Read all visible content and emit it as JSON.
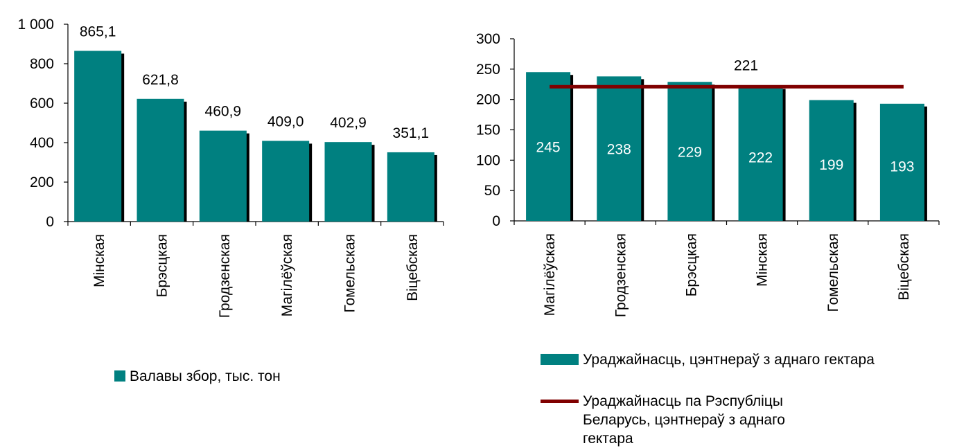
{
  "colors": {
    "bar": "#008080",
    "bar_shadow": "#000000",
    "line": "#800000",
    "axis": "#000000"
  },
  "chart_data": [
    {
      "type": "bar",
      "categories": [
        "Мінская",
        "Брэсцкая",
        "Гродзенская",
        "Магілёўская",
        "Гомельская",
        "Віцебская"
      ],
      "series": [
        {
          "name": "Валавы збор, тыс. тон",
          "values": [
            865.1,
            621.8,
            460.9,
            409.0,
            402.9,
            351.1
          ]
        }
      ],
      "value_labels": [
        "865,1",
        "621,8",
        "460,9",
        "409,0",
        "402,9",
        "351,1"
      ],
      "yticks": [
        "0",
        "200",
        "400",
        "600",
        "800",
        "1 000"
      ],
      "ylim": [
        0,
        1000
      ],
      "legend": "bottom"
    },
    {
      "type": "bar",
      "categories": [
        "Магілёўская",
        "Гродзенская",
        "Брэсцкая",
        "Мінская",
        "Гомельская",
        "Віцебская"
      ],
      "series": [
        {
          "name": "Ураджайнасць, цэнтнераў з аднаго гектара",
          "values": [
            245,
            238,
            229,
            222,
            199,
            193
          ]
        },
        {
          "name": "Ураджайнасць па Рэспубліцы Беларусь, цэнтнераў з аднаго гектара",
          "type": "line",
          "values": [
            221,
            221,
            221,
            221,
            221,
            221
          ]
        }
      ],
      "value_labels": [
        "245",
        "238",
        "229",
        "222",
        "199",
        "193"
      ],
      "line_label": "221",
      "yticks": [
        "0",
        "50",
        "100",
        "150",
        "200",
        "250",
        "300"
      ],
      "ylim": [
        0,
        300
      ],
      "legend": "bottom"
    }
  ]
}
